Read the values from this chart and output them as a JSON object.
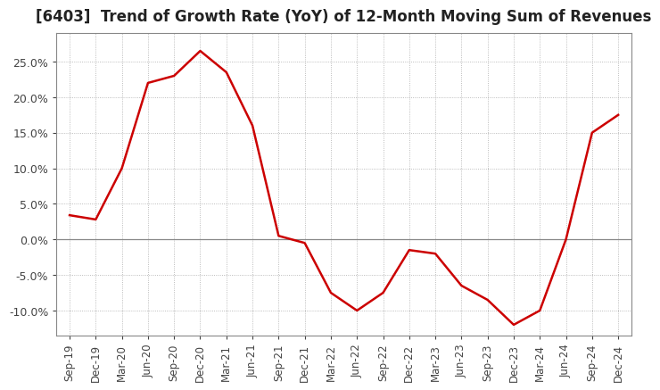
{
  "title": "[6403]  Trend of Growth Rate (YoY) of 12-Month Moving Sum of Revenues",
  "title_fontsize": 12,
  "line_color": "#cc0000",
  "background_color": "#ffffff",
  "plot_bg_color": "#ffffff",
  "grid_color": "#aaaaaa",
  "ylim": [
    -0.135,
    0.29
  ],
  "yticks": [
    -0.1,
    -0.05,
    0.0,
    0.05,
    0.1,
    0.15,
    0.2,
    0.25
  ],
  "x_labels": [
    "Sep-19",
    "Dec-19",
    "Mar-20",
    "Jun-20",
    "Sep-20",
    "Dec-20",
    "Mar-21",
    "Jun-21",
    "Sep-21",
    "Dec-21",
    "Mar-22",
    "Jun-22",
    "Sep-22",
    "Dec-22",
    "Mar-23",
    "Jun-23",
    "Sep-23",
    "Dec-23",
    "Mar-24",
    "Jun-24",
    "Sep-24",
    "Dec-24"
  ],
  "y_values": [
    0.034,
    0.028,
    0.1,
    0.22,
    0.23,
    0.265,
    0.235,
    0.16,
    0.005,
    -0.005,
    -0.075,
    -0.1,
    -0.075,
    -0.015,
    -0.02,
    -0.065,
    -0.085,
    -0.12,
    -0.1,
    0.0,
    0.15,
    0.175
  ]
}
